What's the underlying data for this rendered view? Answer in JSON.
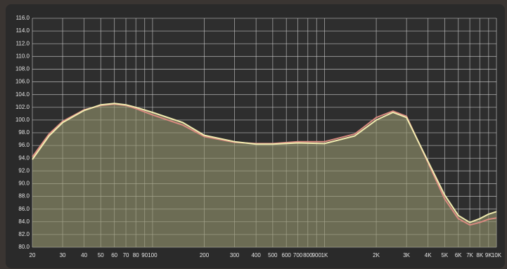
{
  "chart_data": {
    "type": "line",
    "log_x": true,
    "grid": true,
    "x": [
      20,
      25,
      30,
      40,
      50,
      60,
      70,
      80,
      100,
      150,
      200,
      300,
      400,
      500,
      700,
      1000,
      1500,
      2000,
      2500,
      3000,
      4000,
      5000,
      6000,
      7000,
      8000,
      9000,
      10000
    ],
    "series": [
      {
        "color": "#d98a80",
        "values": [
          94.2,
          97.8,
          99.8,
          101.6,
          102.3,
          102.5,
          102.3,
          101.8,
          100.8,
          99.2,
          97.4,
          96.5,
          96.3,
          96.3,
          96.6,
          96.6,
          97.8,
          100.4,
          101.4,
          100.6,
          93.3,
          87.6,
          84.5,
          83.5,
          83.9,
          84.4,
          84.6
        ]
      },
      {
        "color": "#f2ecb0",
        "values": [
          93.8,
          97.5,
          99.6,
          101.5,
          102.4,
          102.6,
          102.4,
          102.0,
          101.2,
          99.6,
          97.6,
          96.6,
          96.2,
          96.2,
          96.4,
          96.3,
          97.5,
          100.0,
          101.2,
          100.4,
          93.5,
          88.2,
          85.0,
          83.9,
          84.5,
          85.2,
          85.6
        ]
      }
    ],
    "xlim": [
      20,
      10000
    ],
    "ylim": [
      80,
      116
    ],
    "xticks": [
      20,
      30,
      40,
      50,
      60,
      70,
      80,
      90,
      100,
      200,
      300,
      400,
      500,
      600,
      700,
      800,
      900,
      {
        "value": 1000,
        "label": "1K"
      },
      {
        "value": 2000,
        "label": "2K"
      },
      {
        "value": 3000,
        "label": "3K"
      },
      {
        "value": 4000,
        "label": "4K"
      },
      {
        "value": 5000,
        "label": "5K"
      },
      {
        "value": 6000,
        "label": "6K"
      },
      {
        "value": 7000,
        "label": "7K"
      },
      {
        "value": 8000,
        "label": "8K"
      },
      {
        "value": 9000,
        "label": "9K"
      },
      {
        "value": 10000,
        "label": "10K"
      }
    ],
    "yticks": [
      {
        "value": 80,
        "label": "80.0"
      },
      {
        "value": 82,
        "label": "82.0"
      },
      {
        "value": 84,
        "label": "84.0"
      },
      {
        "value": 86,
        "label": "86.0"
      },
      {
        "value": 88,
        "label": "88.0"
      },
      {
        "value": 90,
        "label": "90.0"
      },
      {
        "value": 92,
        "label": "92.0"
      },
      {
        "value": 94,
        "label": "94.0"
      },
      {
        "value": 96,
        "label": "96.0"
      },
      {
        "value": 98,
        "label": "98.0"
      },
      {
        "value": 100,
        "label": "100.0"
      },
      {
        "value": 102,
        "label": "102.0"
      },
      {
        "value": 104,
        "label": "104.0"
      },
      {
        "value": 106,
        "label": "106.0"
      },
      {
        "value": 108,
        "label": "108.0"
      },
      {
        "value": 110,
        "label": "110.0"
      },
      {
        "value": 112,
        "label": "112.0"
      },
      {
        "value": 114,
        "label": "114.0"
      },
      {
        "value": 116,
        "label": "116.0"
      }
    ]
  }
}
